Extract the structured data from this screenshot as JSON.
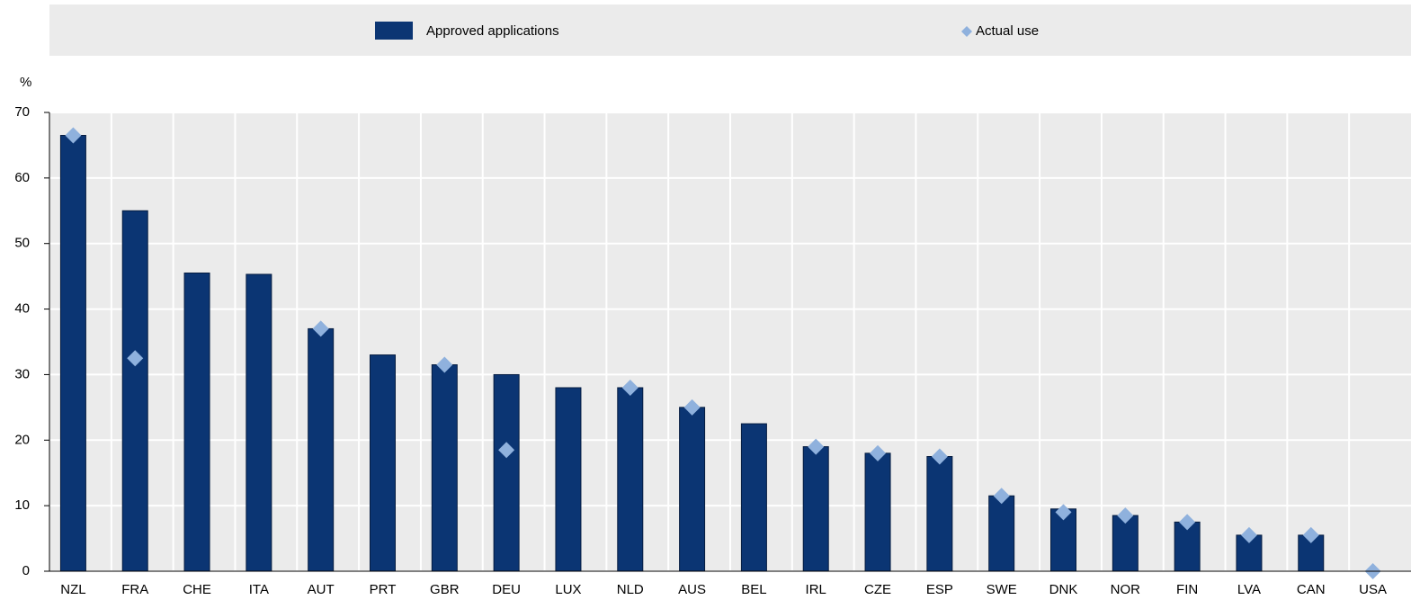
{
  "chart_data": {
    "type": "bar",
    "y_unit": "%",
    "categories": [
      "NZL",
      "FRA",
      "CHE",
      "ITA",
      "AUT",
      "PRT",
      "GBR",
      "DEU",
      "LUX",
      "NLD",
      "AUS",
      "BEL",
      "IRL",
      "CZE",
      "ESP",
      "SWE",
      "DNK",
      "NOR",
      "FIN",
      "LVA",
      "CAN",
      "USA"
    ],
    "series": [
      {
        "name": "Approved applications",
        "type": "bar",
        "color": "#0b3573",
        "values": [
          66.5,
          55,
          45.5,
          45.3,
          37,
          33,
          31.5,
          30,
          28,
          28,
          25,
          22.5,
          19,
          18,
          17.5,
          11.5,
          9.5,
          8.5,
          7.5,
          5.5,
          5.5,
          0
        ]
      },
      {
        "name": "Actual use",
        "type": "scatter",
        "color": "#8fb1dd",
        "values": [
          66.5,
          32.5,
          null,
          null,
          37,
          null,
          31.5,
          18.5,
          null,
          28,
          25,
          null,
          19,
          18,
          17.5,
          11.5,
          9,
          8.5,
          7.5,
          5.5,
          5.5,
          0
        ]
      }
    ],
    "ylim": [
      0,
      70
    ],
    "yticks": [
      0,
      10,
      20,
      30,
      40,
      50,
      60,
      70
    ],
    "grid": true,
    "legend": "top"
  }
}
